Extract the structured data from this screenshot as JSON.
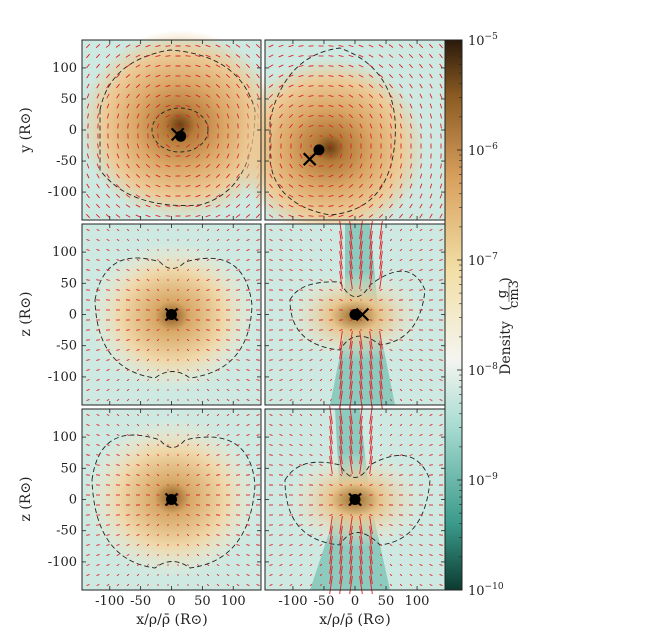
{
  "chart_data": [
    {
      "type": "heatmap",
      "panel": "top-left",
      "view": "x-y plane",
      "xlim": [
        -145,
        145
      ],
      "ylim": [
        -145,
        145
      ],
      "ylabel": "y (R⊙)",
      "xlabel": "",
      "yticks": [
        100,
        50,
        0,
        -50,
        -100
      ],
      "particles": [
        {
          "marker": "dot",
          "x": 15,
          "y": -10
        },
        {
          "marker": "cross",
          "x": 10,
          "y": -7
        }
      ],
      "density_blob": {
        "cx": 10,
        "cy": -5,
        "extent": "large"
      }
    },
    {
      "type": "heatmap",
      "panel": "top-right",
      "view": "x-y plane",
      "xlim": [
        -145,
        145
      ],
      "ylim": [
        -145,
        145
      ],
      "particles": [
        {
          "marker": "dot",
          "x": -58,
          "y": -32
        },
        {
          "marker": "cross",
          "x": -73,
          "y": -47
        }
      ],
      "density_blob": {
        "cx": -58,
        "cy": -28,
        "extent": "large"
      }
    },
    {
      "type": "heatmap",
      "panel": "middle-left",
      "view": "x-z plane",
      "xlim": [
        -145,
        145
      ],
      "ylim": [
        -145,
        145
      ],
      "ylabel": "z (R⊙)",
      "yticks": [
        100,
        50,
        0,
        -50,
        -100
      ],
      "particles": [
        {
          "marker": "dot",
          "x": 0,
          "y": 0
        },
        {
          "marker": "cross",
          "x": 0,
          "y": 0
        }
      ],
      "density_blob": {
        "cx": 0,
        "cy": 0,
        "extent": "medium"
      }
    },
    {
      "type": "heatmap",
      "panel": "middle-right",
      "view": "x-z plane",
      "xlim": [
        -145,
        145
      ],
      "ylim": [
        -145,
        145
      ],
      "particles": [
        {
          "marker": "dot",
          "x": 0,
          "y": 0
        },
        {
          "marker": "cross",
          "x": 12,
          "y": 0
        }
      ],
      "density_blob": {
        "cx": 5,
        "cy": 0,
        "extent": "small"
      }
    },
    {
      "type": "heatmap",
      "panel": "bottom-left",
      "view": "x-z plane",
      "xlim": [
        -145,
        145
      ],
      "ylim": [
        -145,
        145
      ],
      "ylabel": "z (R⊙)",
      "xlabel": "x/ρ/ρ̄ (R⊙)",
      "yticks": [
        100,
        50,
        0,
        -50,
        -100
      ],
      "xticks": [
        -100,
        -50,
        0,
        50,
        100
      ],
      "particles": [
        {
          "marker": "dot",
          "x": 0,
          "y": 0
        },
        {
          "marker": "cross",
          "x": 0,
          "y": 0
        }
      ],
      "density_blob": {
        "cx": 0,
        "cy": 0,
        "extent": "medium"
      }
    },
    {
      "type": "heatmap",
      "panel": "bottom-right",
      "view": "x-z plane",
      "xlim": [
        -145,
        145
      ],
      "ylim": [
        -145,
        145
      ],
      "xlabel": "x/ρ/ρ̄ (R⊙)",
      "xticks": [
        -100,
        -50,
        0,
        50,
        100
      ],
      "particles": [
        {
          "marker": "dot",
          "x": 0,
          "y": 0
        },
        {
          "marker": "cross",
          "x": 0,
          "y": 0
        }
      ],
      "density_blob": {
        "cx": 0,
        "cy": 0,
        "extent": "small"
      }
    }
  ],
  "colorbar": {
    "label": "Density",
    "units_num": "g",
    "units_den": "cm3",
    "scale": "log",
    "range": [
      1e-10,
      1e-05
    ],
    "tick_labels": [
      "10−5",
      "10−6",
      "10−7",
      "10−8",
      "10−9",
      "10−10"
    ],
    "colors": [
      "#0c3b30",
      "#3a9a8a",
      "#a9dcd2",
      "#f5f5f0",
      "#f2dfa6",
      "#d8a05e",
      "#8a5a22",
      "#2a1a0a"
    ]
  },
  "labels": {
    "ylabel_top": "y (R⊙)",
    "ylabel_mid": "z (R⊙)",
    "ylabel_bot": "z (R⊙)",
    "xlabel_left": "x/ρ/ρ̄ (R⊙)",
    "xlabel_right": "x/ρ/ρ̄ (R⊙)"
  }
}
